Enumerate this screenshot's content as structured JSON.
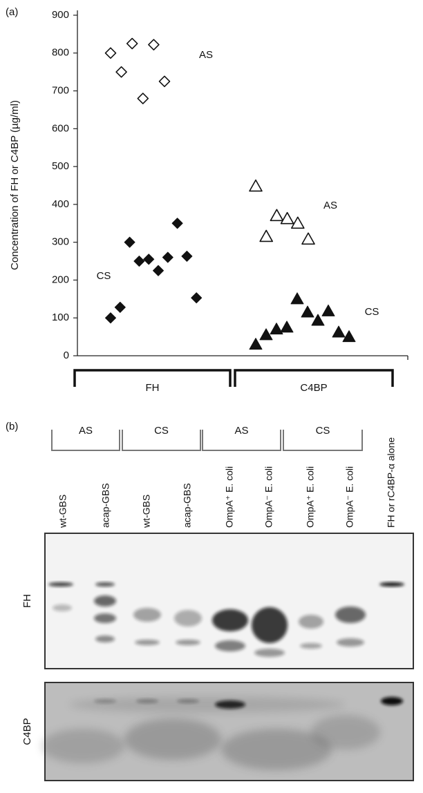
{
  "panel_labels": [
    "(a)",
    "(b)"
  ],
  "chart_data": {
    "type": "scatter",
    "ylabel": "Concentration of FH or C4BP (µg/ml)",
    "ylim": [
      0,
      900
    ],
    "yticks": [
      0,
      100,
      200,
      300,
      400,
      500,
      600,
      700,
      800,
      900
    ],
    "groups": [
      {
        "label": "FH",
        "series": [
          {
            "name": "AS",
            "marker": "diamond",
            "filled": false,
            "color": "#111111",
            "values": [
              800,
              750,
              825,
              680,
              822,
              725
            ]
          },
          {
            "name": "CS",
            "marker": "diamond",
            "filled": true,
            "color": "#111111",
            "values": [
              100,
              128,
              300,
              250,
              255,
              225,
              260,
              350,
              263,
              153
            ]
          }
        ]
      },
      {
        "label": "C4BP",
        "series": [
          {
            "name": "AS",
            "marker": "triangle",
            "filled": false,
            "color": "#111111",
            "values": [
              448,
              315,
              370,
              362,
              350,
              308
            ]
          },
          {
            "name": "CS",
            "marker": "triangle",
            "filled": true,
            "color": "#111111",
            "values": [
              30,
              55,
              70,
              75,
              150,
              115,
              93,
              118,
              62,
              50
            ]
          }
        ]
      }
    ]
  },
  "blot": {
    "groups": [
      "AS",
      "CS",
      "AS",
      "CS"
    ],
    "lanes": [
      "wt-GBS",
      "acap-GBS",
      "wt-GBS",
      "acap-GBS",
      "OmpA⁺ E. coli",
      "OmpA⁻ E. coli",
      "OmpA⁺ E. coli",
      "OmpA⁻ E. coli",
      "FH or rC4BP-α alone"
    ],
    "rows": [
      "FH",
      "C4BP"
    ]
  }
}
